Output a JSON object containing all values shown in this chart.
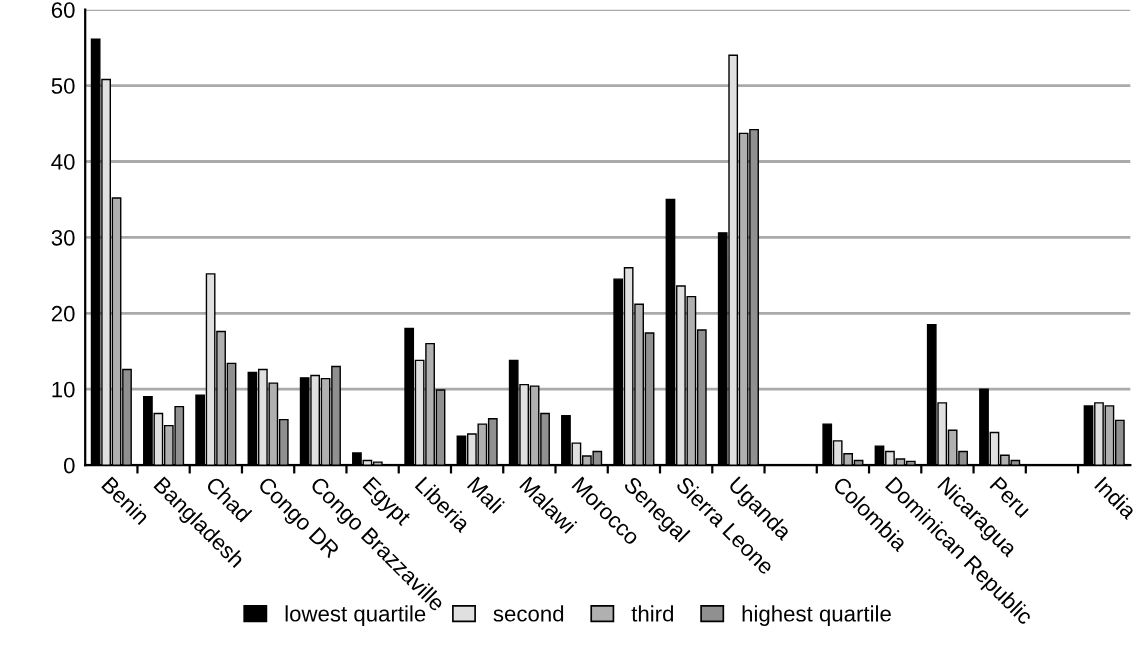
{
  "chart_data": {
    "type": "bar",
    "categories": [
      "Benin",
      "Bangladesh",
      "Chad",
      "Congo DR",
      "Congo Brazzaville",
      "Egypt",
      "Liberia",
      "Mali",
      "Malawi",
      "Morocco",
      "Senegal",
      "Sierra Leone",
      "Uganda",
      null,
      "Colombia",
      "Dominican Republic",
      "Nicaragua",
      "Peru",
      null,
      "India"
    ],
    "series": [
      {
        "name": "lowest quartile",
        "color": "#000000",
        "values": [
          56.1,
          9.0,
          9.2,
          12.2,
          11.5,
          1.6,
          18.0,
          3.8,
          13.8,
          6.5,
          24.5,
          35.0,
          30.6,
          null,
          5.4,
          2.5,
          18.5,
          10.0,
          null,
          7.8
        ]
      },
      {
        "name": "second",
        "color": "#e0e0e0",
        "values": [
          50.8,
          6.8,
          25.2,
          12.6,
          11.8,
          0.6,
          13.8,
          4.1,
          10.6,
          2.9,
          26.0,
          23.6,
          54.0,
          null,
          3.2,
          1.8,
          8.2,
          4.3,
          null,
          8.2
        ]
      },
      {
        "name": "third",
        "color": "#b0b0b0",
        "values": [
          35.2,
          5.2,
          17.6,
          10.8,
          11.4,
          0.4,
          16.0,
          5.4,
          10.4,
          1.2,
          21.2,
          22.2,
          43.7,
          null,
          1.5,
          0.8,
          4.6,
          1.3,
          null,
          7.8
        ]
      },
      {
        "name": "highest quartile",
        "color": "#909090",
        "values": [
          12.6,
          7.7,
          13.4,
          6.0,
          13.0,
          null,
          9.9,
          6.1,
          6.8,
          1.8,
          17.4,
          17.8,
          44.2,
          null,
          0.6,
          0.5,
          1.8,
          0.6,
          null,
          5.9
        ]
      }
    ],
    "ylim": [
      0,
      60
    ],
    "yticks": [
      0,
      10,
      20,
      30,
      40,
      50,
      60
    ],
    "grid": "y",
    "legend": "bottom"
  }
}
